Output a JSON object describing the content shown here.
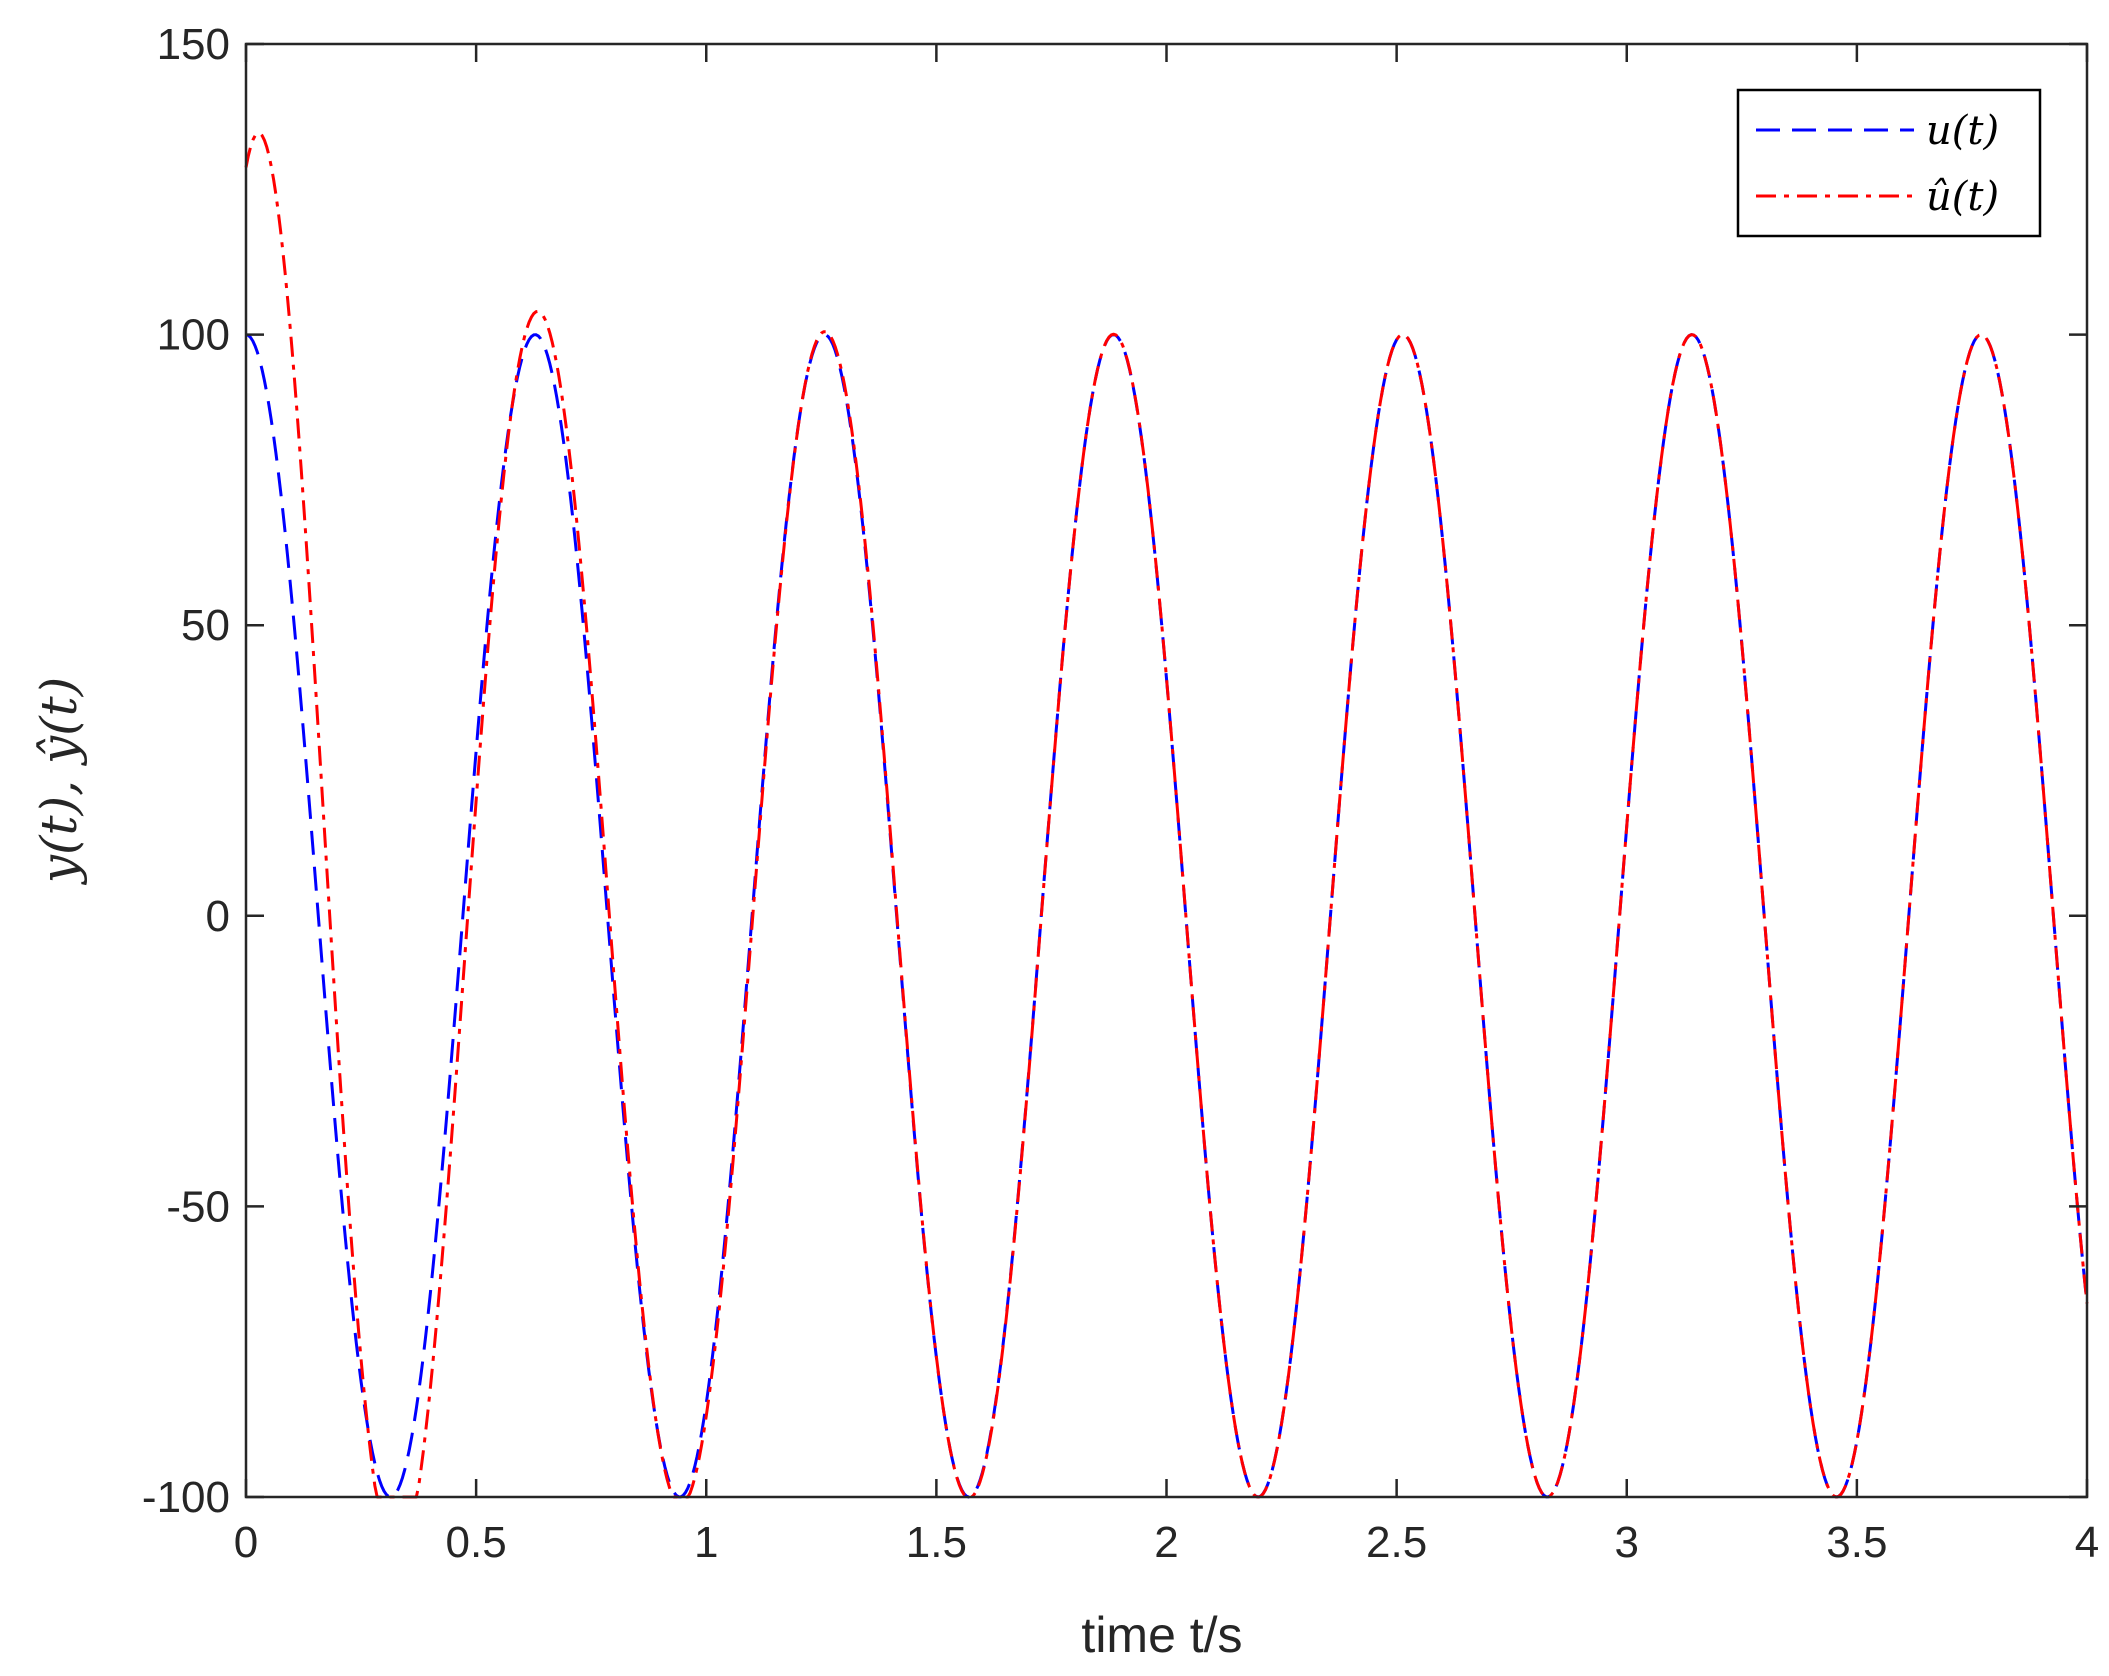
{
  "chart_data": {
    "type": "line",
    "xlabel": "time t/s",
    "ylabel": "y(t), ŷ(t)",
    "xlim": [
      0,
      4
    ],
    "ylim": [
      -100,
      150
    ],
    "x_ticks": [
      "0",
      "0.5",
      "1",
      "1.5",
      "2",
      "2.5",
      "3",
      "3.5",
      "4"
    ],
    "y_ticks": [
      "-100",
      "-50",
      "0",
      "50",
      "100",
      "150"
    ],
    "grid": false,
    "legend_position": "top-right",
    "series": [
      {
        "name": "u(t)",
        "color": "#0000ff",
        "style": "dashed",
        "model": {
          "amplitude": 100,
          "omega": 10,
          "clip_min": -100
        }
      },
      {
        "name": "û(t)",
        "color": "#ff0000",
        "style": "dash-dot",
        "model": {
          "amplitude": 100,
          "omega": 10,
          "transient_amplitude": 60,
          "transient_decay": 3.2,
          "transient_omega": 10,
          "transient_phase": 0.5,
          "clip_min": -100
        }
      }
    ]
  }
}
